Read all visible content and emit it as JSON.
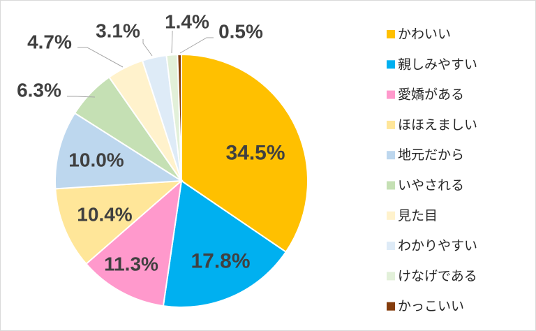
{
  "chart_data": {
    "type": "pie",
    "categories": [
      "かわいい",
      "親しみやすい",
      "愛嬌がある",
      "ほほえましい",
      "地元だから",
      "いやされる",
      "見た目",
      "わかりやすい",
      "けなげである",
      "かっこいい"
    ],
    "values": [
      34.5,
      17.8,
      11.3,
      10.4,
      10.0,
      6.3,
      4.7,
      3.1,
      1.4,
      0.5
    ],
    "labels": [
      "34.5%",
      "17.8%",
      "11.3%",
      "10.4%",
      "10.0%",
      "6.3%",
      "4.7%",
      "3.1%",
      "1.4%",
      "0.5%"
    ],
    "colors": [
      "#ffc000",
      "#00b0f0",
      "#ff99cc",
      "#ffe699",
      "#bdd7ee",
      "#c5e0b4",
      "#fff2cc",
      "#deebf7",
      "#e2f0d9",
      "#843c0c"
    ],
    "legend_position": "right",
    "start_angle": "top",
    "direction": "clockwise"
  }
}
